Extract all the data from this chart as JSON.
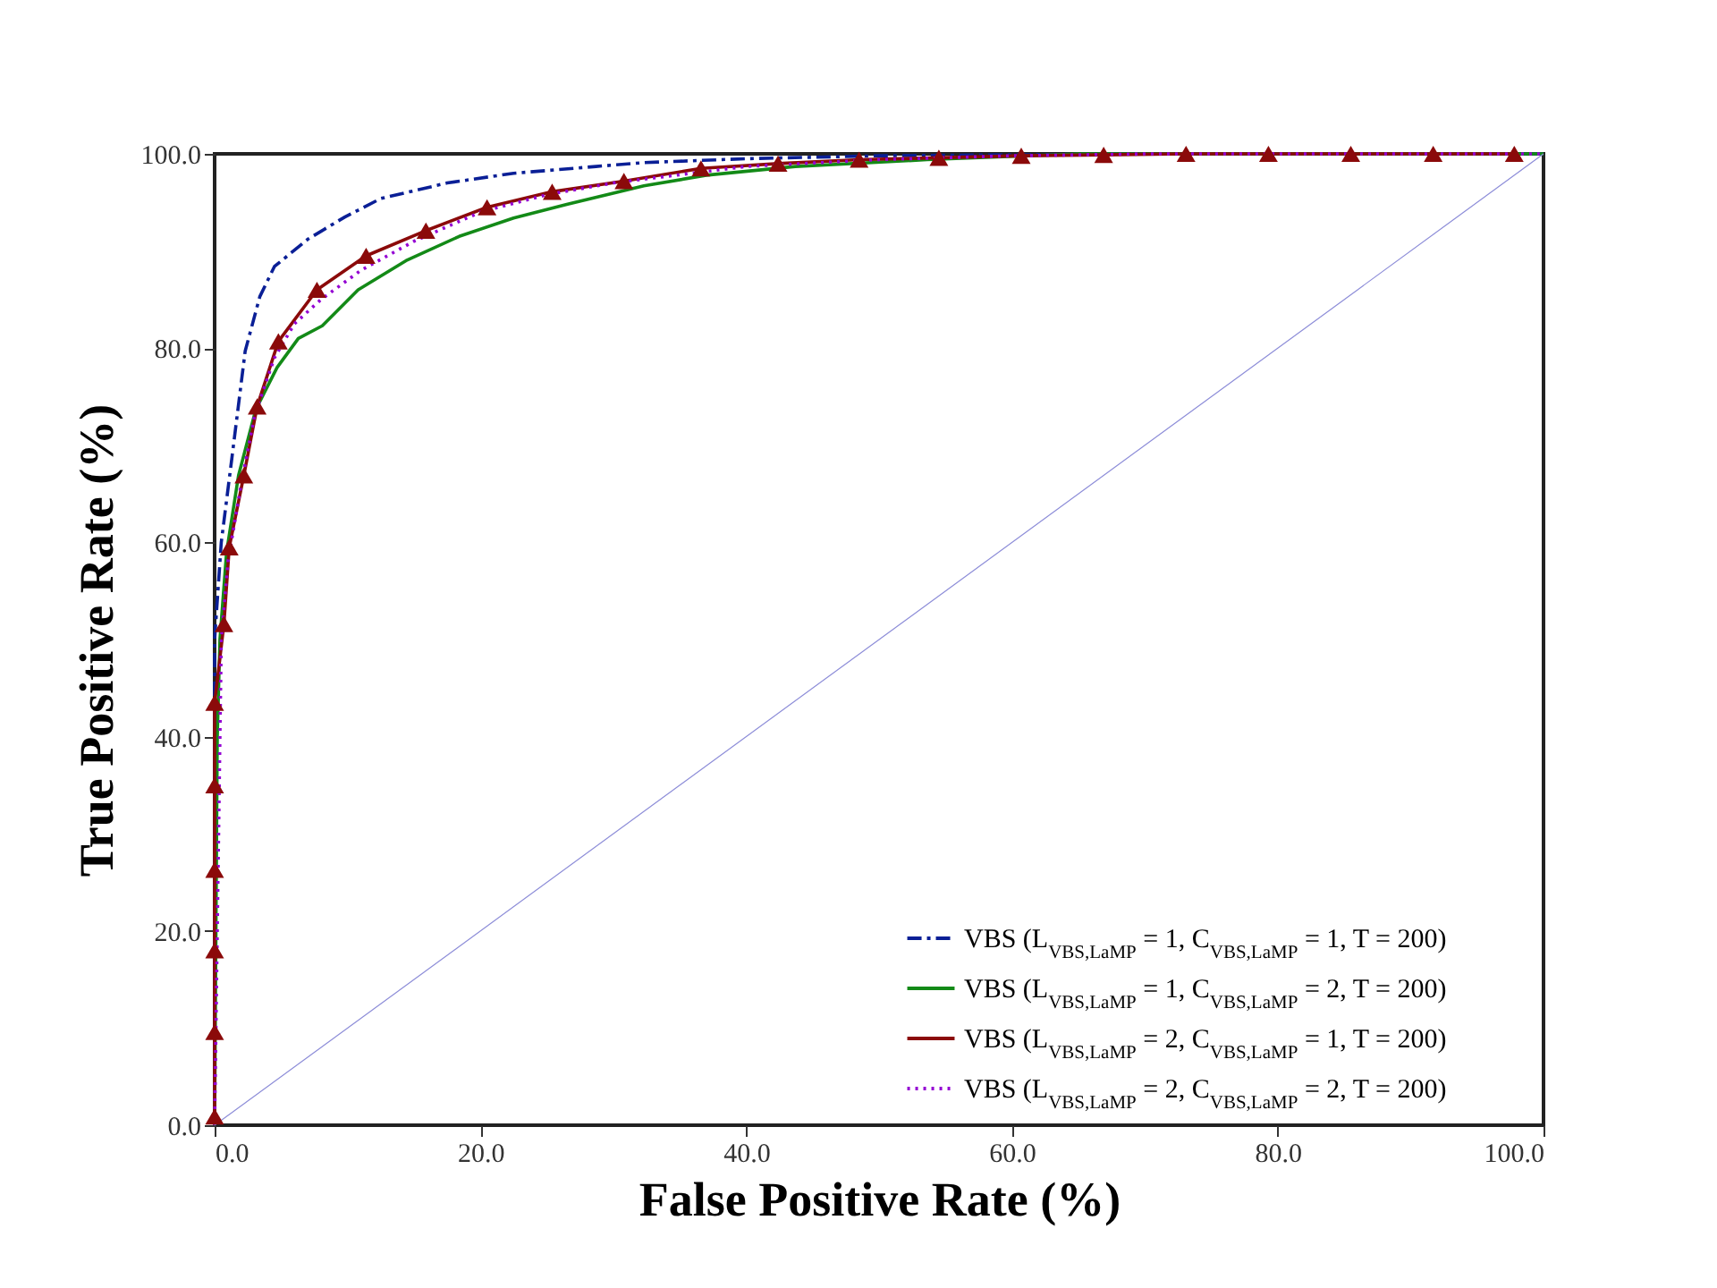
{
  "chart_data": {
    "type": "line",
    "xlabel": "False Positive Rate (%)",
    "ylabel": "True Positive Rate (%)",
    "xlim": [
      0,
      100
    ],
    "ylim": [
      0,
      100
    ],
    "xticks": [
      {
        "value": 0,
        "label": "0.0"
      },
      {
        "value": 20,
        "label": "20.0"
      },
      {
        "value": 40,
        "label": "40.0"
      },
      {
        "value": 60,
        "label": "60.0"
      },
      {
        "value": 80,
        "label": "80.0"
      },
      {
        "value": 100,
        "label": "100.0"
      }
    ],
    "yticks": [
      {
        "value": 0,
        "label": "0.0"
      },
      {
        "value": 20,
        "label": "20.0"
      },
      {
        "value": 40,
        "label": "40.0"
      },
      {
        "value": 60,
        "label": "60.0"
      },
      {
        "value": 80,
        "label": "80.0"
      },
      {
        "value": 100,
        "label": "100.0"
      }
    ],
    "grid": false,
    "legend": "bottom right",
    "series": [
      {
        "name": "VBS (L$_{VBS,LaMP}$ = 1, C$_{VBS,LaMP}$ = 1, T = 200)",
        "color": "#0a1f96",
        "line_style": "dashdot",
        "marker": "none",
        "x": [
          0,
          0,
          0.5,
          1.3,
          2.3,
          3.4,
          4.5,
          7,
          9.8,
          12.5,
          17.5,
          22.5,
          28.7,
          32.3,
          40,
          50,
          60,
          70,
          100
        ],
        "values": [
          0,
          50,
          60,
          68.7,
          79.7,
          85.3,
          88.4,
          91.2,
          93.5,
          95.4,
          97,
          98,
          98.7,
          99.1,
          99.5,
          99.8,
          99.9,
          100,
          100
        ]
      },
      {
        "name": "VBS (L$_{VBS,LaMP}$ = 1, C$_{VBS,LaMP}$ = 2, T = 200)",
        "color": "#138a17",
        "line_style": "solid",
        "marker": "none",
        "x": [
          0,
          0.2,
          0.4,
          0.9,
          1.8,
          3.1,
          4.7,
          6.3,
          8.1,
          10.8,
          14.4,
          18.4,
          22.5,
          26.5,
          32.3,
          37,
          43.7,
          53.6,
          65,
          100
        ],
        "values": [
          0,
          40,
          50,
          59,
          66.9,
          73.7,
          78,
          81,
          82.3,
          86,
          89,
          91.5,
          93.4,
          94.8,
          96.7,
          97.8,
          98.7,
          99.4,
          100,
          100
        ]
      },
      {
        "name": "VBS (L$_{VBS,LaMP}$ = 2, C$_{VBS,LaMP}$ = 1, T = 200)",
        "color": "#8b0a0a",
        "line_style": "solid",
        "marker": "triangle",
        "x": [
          0,
          0,
          0,
          0,
          0,
          0,
          0.7,
          1.1,
          2.2,
          3.2,
          4.8,
          7.7,
          11.4,
          15.9,
          20.5,
          25.4,
          30.8,
          36.6,
          42.4,
          48.5,
          54.5,
          60.7,
          66.9,
          73.1,
          79.3,
          85.5,
          91.7,
          97.8
        ],
        "values": [
          0.9,
          9.6,
          18,
          26.3,
          35,
          43.5,
          51.6,
          59.5,
          66.9,
          74,
          80.7,
          86,
          89.5,
          92.1,
          94.5,
          96.1,
          97.2,
          98.5,
          99,
          99.4,
          99.6,
          99.8,
          99.9,
          100,
          100,
          100,
          100,
          100
        ]
      },
      {
        "name": "VBS (L$_{VBS,LaMP}$ = 2, C$_{VBS,LaMP}$ = 2, T = 200)",
        "color": "#9400d3",
        "line_style": "dotted",
        "marker": "none",
        "x": [
          0,
          0.5,
          1,
          2,
          3,
          4.5,
          6,
          8,
          11,
          15,
          20,
          25,
          30,
          40,
          50,
          60,
          70,
          100
        ],
        "values": [
          0,
          50,
          58,
          66,
          73,
          79,
          82.5,
          85,
          88,
          91,
          94,
          95.8,
          97,
          98.7,
          99.4,
          99.8,
          100,
          100
        ]
      },
      {
        "color": "#8c8cd8",
        "line_style": "solid",
        "marker": "none",
        "x": [
          0,
          100
        ],
        "values": [
          0,
          100
        ]
      }
    ]
  }
}
